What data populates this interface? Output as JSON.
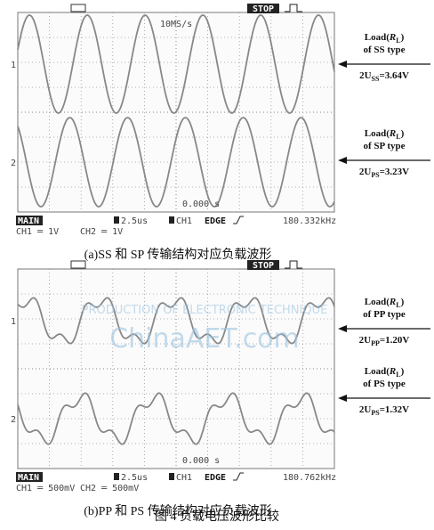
{
  "panel_a": {
    "scope": {
      "status": "STOP",
      "sample_rate": "10MS/s",
      "ch1_marker": "1",
      "ch2_marker": "2",
      "trigger_time": "0.000 s",
      "mode": "MAIN",
      "timebase": "2.5us",
      "trigger_source": "CH1",
      "trigger_type": "EDGE",
      "frequency": "180.332kHz",
      "ch1_scale": "CH1 ═ 1V",
      "ch2_scale": "CH2 ═ 1V"
    },
    "annotations": [
      {
        "line1": [
          "Load(",
          "R",
          "L",
          ")"
        ],
        "line2": "of SS type",
        "line3": [
          "2U",
          "SS",
          "=3.64V"
        ]
      },
      {
        "line1": [
          "Load(",
          "R",
          "L",
          ")"
        ],
        "line2": "of SP type",
        "line3": [
          "2U",
          "PS",
          "=3.23V"
        ]
      }
    ],
    "caption": "(a)SS 和 SP 传输结构对应负载波形"
  },
  "panel_b": {
    "scope": {
      "status": "STOP",
      "sample_rate": "",
      "ch1_marker": "1",
      "ch2_marker": "2",
      "trigger_time": "0.000 s",
      "mode": "MAIN",
      "timebase": "2.5us",
      "trigger_source": "CH1",
      "trigger_type": "EDGE",
      "frequency": "180.762kHz",
      "ch1_scale": "CH1 ═ 500mV",
      "ch2_scale": "CH2 ═ 500mV"
    },
    "annotations": [
      {
        "line1": [
          "Load(",
          "R",
          "L",
          ")"
        ],
        "line2": "of PP type",
        "line3": [
          "2U",
          "PP",
          "=1.20V"
        ]
      },
      {
        "line1": [
          "Load(",
          "R",
          "L",
          ")"
        ],
        "line2": "of PS type",
        "line3": [
          "2U",
          "PS",
          "=1.32V"
        ]
      }
    ],
    "caption": "(b)PP 和 PS 传输结构对应负载波形"
  },
  "watermark": "ChinaAET.com",
  "watermark_sub": "PRODUCTION OF ELECTRONIC TECHNIQUE",
  "figure_caption": "图 4  负载电压波形比较"
}
